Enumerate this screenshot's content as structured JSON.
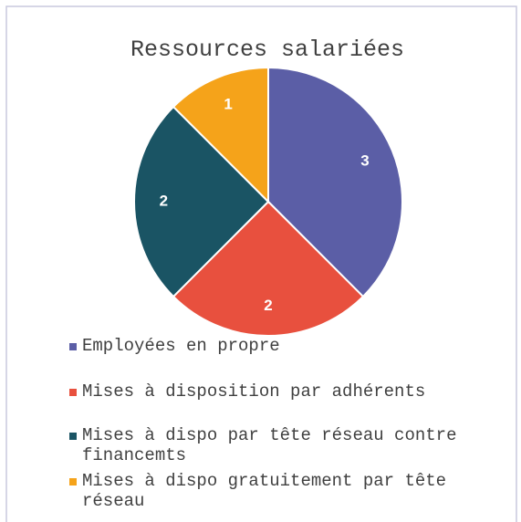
{
  "chart_data": {
    "type": "pie",
    "title": "Ressources salariées",
    "categories": [
      "Employées en propre",
      "Mises à disposition par adhérents",
      "Mises à dispo par tête réseau contre financemts",
      "Mises à dispo gratuitement par tête réseau"
    ],
    "values": [
      3,
      2,
      2,
      1
    ],
    "colors": [
      "#5b5ea6",
      "#e8503e",
      "#1a5464",
      "#f5a31a"
    ],
    "legend": "bottom"
  }
}
